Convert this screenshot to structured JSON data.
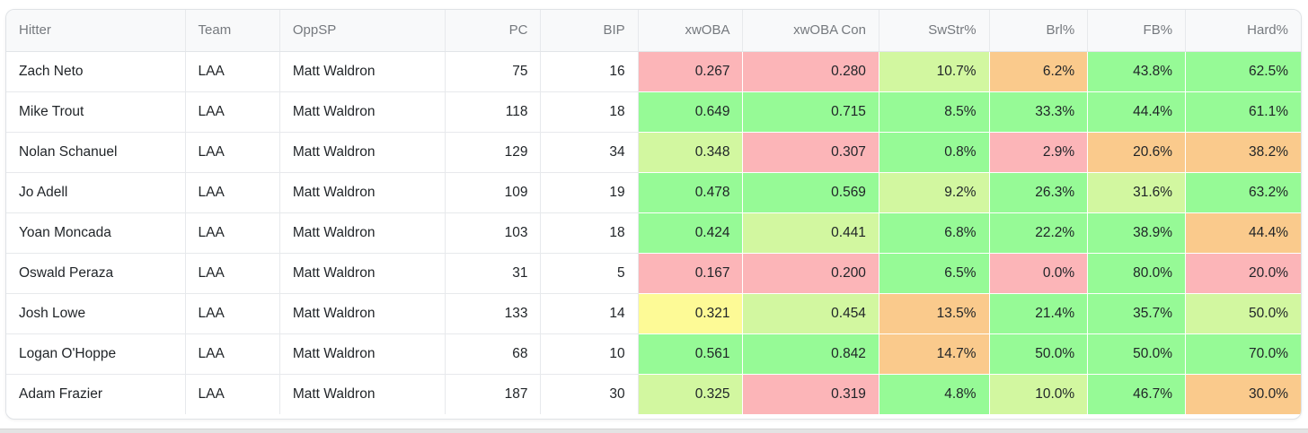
{
  "table": {
    "columns": [
      {
        "label": "Hitter",
        "align": "left"
      },
      {
        "label": "Team",
        "align": "left"
      },
      {
        "label": "OppSP",
        "align": "left"
      },
      {
        "label": "PC",
        "align": "right"
      },
      {
        "label": "BIP",
        "align": "right"
      },
      {
        "label": "xwOBA",
        "align": "right"
      },
      {
        "label": "xwOBA Con",
        "align": "right"
      },
      {
        "label": "SwStr%",
        "align": "right"
      },
      {
        "label": "Brl%",
        "align": "right"
      },
      {
        "label": "FB%",
        "align": "right"
      },
      {
        "label": "Hard%",
        "align": "right"
      }
    ],
    "column_widths_pct": [
      13.8,
      7.3,
      12.75,
      7.4,
      7.5,
      8.1,
      10.5,
      8.5,
      7.6,
      7.55,
      8.9
    ],
    "rows": [
      {
        "cells": [
          "Zach Neto",
          "LAA",
          "Matt Waldron",
          "75",
          "16",
          "0.267",
          "0.280",
          "10.7%",
          "6.2%",
          "43.8%",
          "62.5%"
        ],
        "heat": [
          null,
          null,
          null,
          null,
          null,
          "red",
          "red",
          "lightgreen",
          "orange",
          "green",
          "green"
        ]
      },
      {
        "cells": [
          "Mike Trout",
          "LAA",
          "Matt Waldron",
          "118",
          "18",
          "0.649",
          "0.715",
          "8.5%",
          "33.3%",
          "44.4%",
          "61.1%"
        ],
        "heat": [
          null,
          null,
          null,
          null,
          null,
          "green",
          "green",
          "green",
          "green",
          "green",
          "green"
        ]
      },
      {
        "cells": [
          "Nolan Schanuel",
          "LAA",
          "Matt Waldron",
          "129",
          "34",
          "0.348",
          "0.307",
          "0.8%",
          "2.9%",
          "20.6%",
          "38.2%"
        ],
        "heat": [
          null,
          null,
          null,
          null,
          null,
          "lightgreen",
          "red",
          "green",
          "red",
          "orange",
          "orange"
        ]
      },
      {
        "cells": [
          "Jo Adell",
          "LAA",
          "Matt Waldron",
          "109",
          "19",
          "0.478",
          "0.569",
          "9.2%",
          "26.3%",
          "31.6%",
          "63.2%"
        ],
        "heat": [
          null,
          null,
          null,
          null,
          null,
          "green",
          "green",
          "lightgreen",
          "green",
          "lightgreen",
          "green"
        ]
      },
      {
        "cells": [
          "Yoan Moncada",
          "LAA",
          "Matt Waldron",
          "103",
          "18",
          "0.424",
          "0.441",
          "6.8%",
          "22.2%",
          "38.9%",
          "44.4%"
        ],
        "heat": [
          null,
          null,
          null,
          null,
          null,
          "green",
          "lightgreen",
          "green",
          "green",
          "green",
          "orange"
        ]
      },
      {
        "cells": [
          "Oswald Peraza",
          "LAA",
          "Matt Waldron",
          "31",
          "5",
          "0.167",
          "0.200",
          "6.5%",
          "0.0%",
          "80.0%",
          "20.0%"
        ],
        "heat": [
          null,
          null,
          null,
          null,
          null,
          "red",
          "red",
          "green",
          "red",
          "green",
          "red"
        ]
      },
      {
        "cells": [
          "Josh Lowe",
          "LAA",
          "Matt Waldron",
          "133",
          "14",
          "0.321",
          "0.454",
          "13.5%",
          "21.4%",
          "35.7%",
          "50.0%"
        ],
        "heat": [
          null,
          null,
          null,
          null,
          null,
          "yellow",
          "lightgreen",
          "orange",
          "green",
          "green",
          "lightgreen"
        ]
      },
      {
        "cells": [
          "Logan O'Hoppe",
          "LAA",
          "Matt Waldron",
          "68",
          "10",
          "0.561",
          "0.842",
          "14.7%",
          "50.0%",
          "50.0%",
          "70.0%"
        ],
        "heat": [
          null,
          null,
          null,
          null,
          null,
          "green",
          "green",
          "orange",
          "green",
          "green",
          "green"
        ]
      },
      {
        "cells": [
          "Adam Frazier",
          "LAA",
          "Matt Waldron",
          "187",
          "30",
          "0.325",
          "0.319",
          "4.8%",
          "10.0%",
          "46.7%",
          "30.0%"
        ],
        "heat": [
          null,
          null,
          null,
          null,
          null,
          "lightgreen",
          "red",
          "green",
          "lightgreen",
          "green",
          "orange"
        ]
      }
    ]
  },
  "heatmap_colors": {
    "red": "#fcb5b8",
    "orange": "#faca8c",
    "yellow": "#fdfa96",
    "lightgreen": "#d2f7a0",
    "green": "#96fa96"
  },
  "column_name_keys": [
    "hitter",
    "team",
    "oppsp",
    "pc",
    "bip",
    "xwoba",
    "xwoba-con",
    "swstr",
    "brl",
    "fb",
    "hard"
  ]
}
